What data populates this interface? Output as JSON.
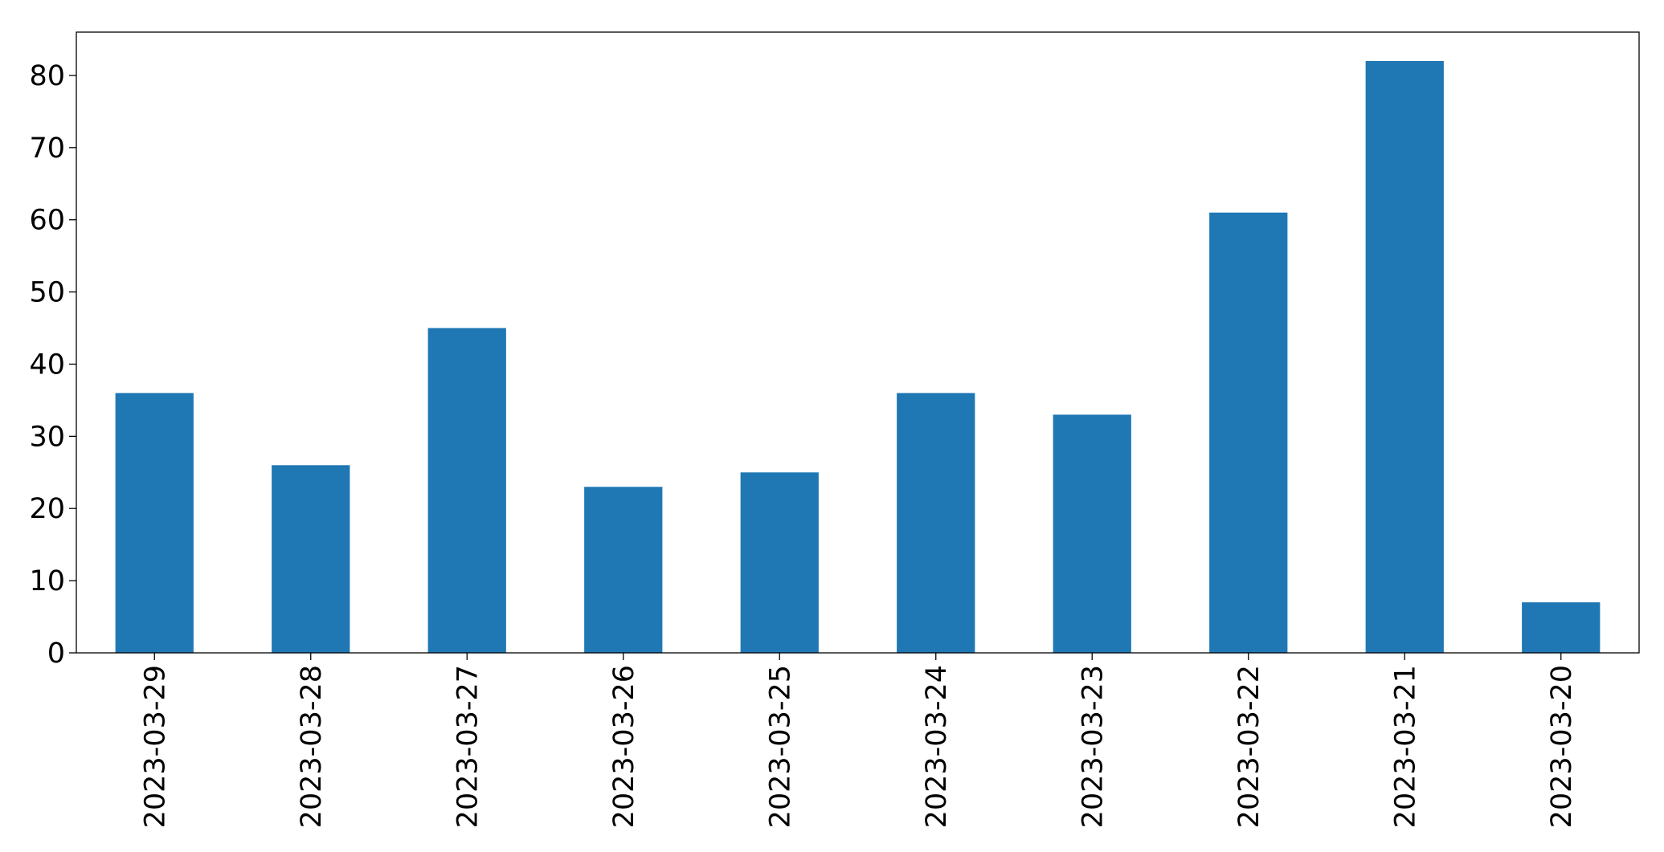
{
  "chart_data": {
    "type": "bar",
    "title": "",
    "xlabel": "",
    "ylabel": "",
    "categories": [
      "2023-03-29",
      "2023-03-28",
      "2023-03-27",
      "2023-03-26",
      "2023-03-25",
      "2023-03-24",
      "2023-03-23",
      "2023-03-22",
      "2023-03-21",
      "2023-03-20"
    ],
    "values": [
      36,
      26,
      45,
      23,
      25,
      36,
      33,
      61,
      82,
      7
    ],
    "ylim": [
      0,
      86
    ],
    "yticks": [
      0,
      10,
      20,
      30,
      40,
      50,
      60,
      70,
      80
    ],
    "grid": false,
    "legend": "none",
    "colors": {
      "bar": "#1f77b4",
      "axis": "#000000",
      "background": "#ffffff"
    }
  }
}
